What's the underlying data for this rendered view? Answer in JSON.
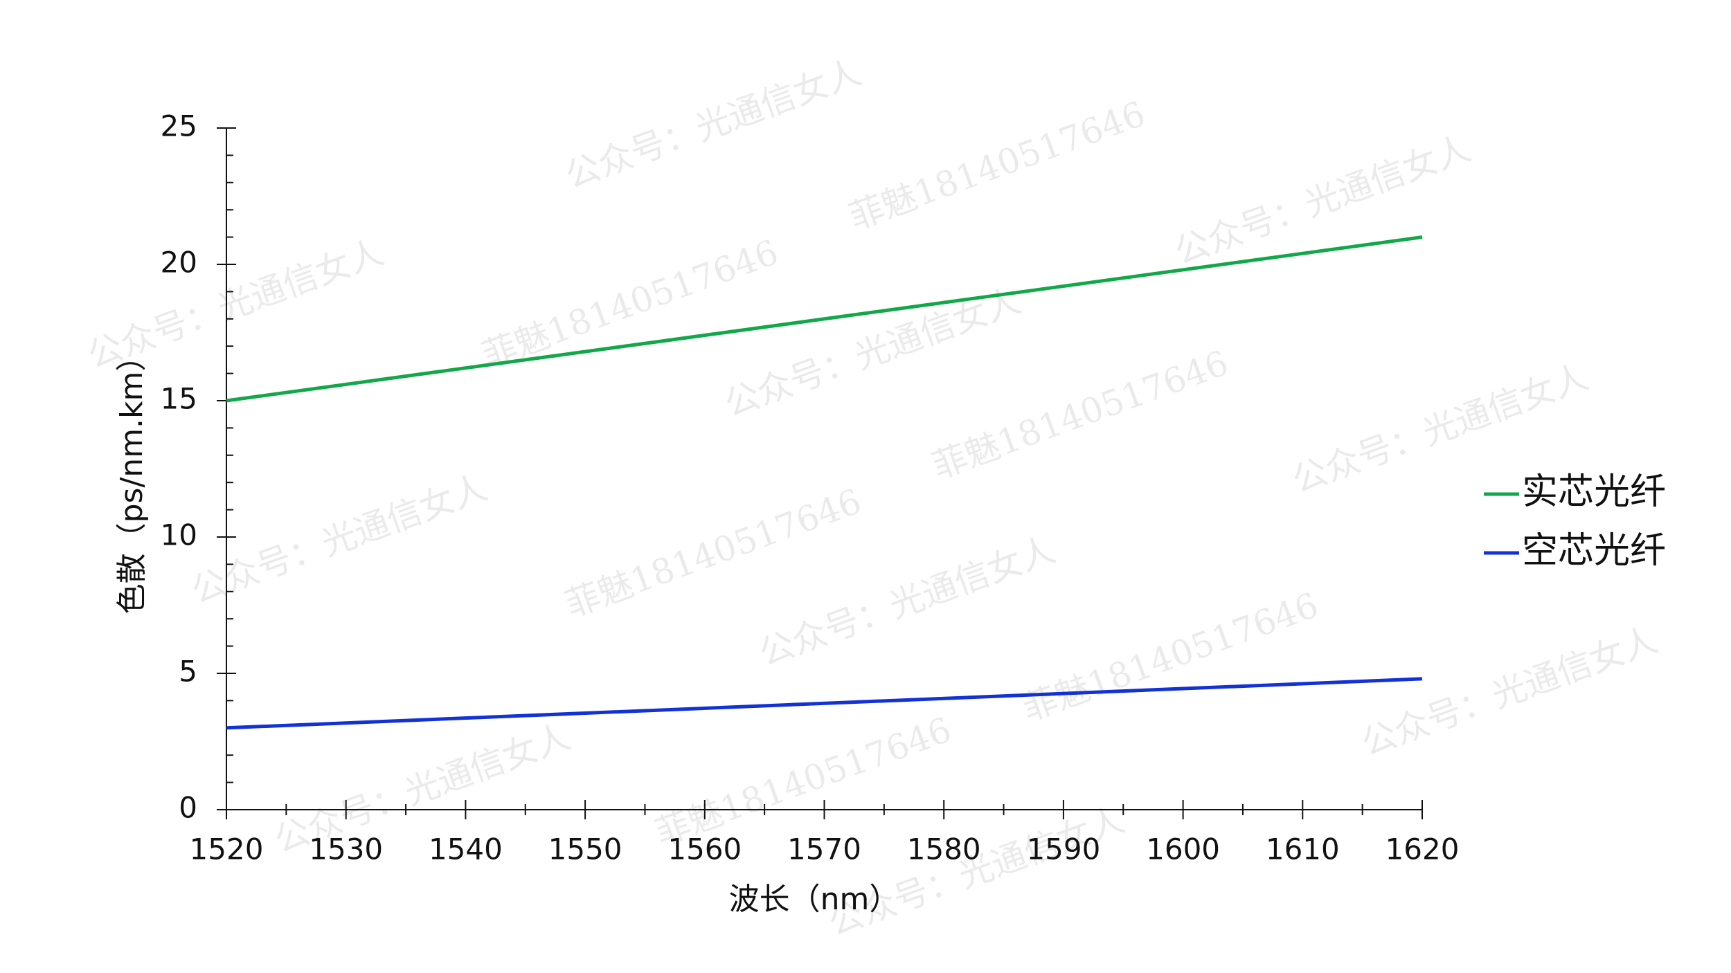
{
  "chart_data": {
    "type": "line",
    "x_label": "波长（nm）",
    "y_label": "色散（ps/nm.km）",
    "x": [
      1520,
      1620
    ],
    "series": [
      {
        "name": "实芯光纤",
        "color": "#12a84a",
        "values": [
          15,
          21
        ]
      },
      {
        "name": "空芯光纤",
        "color": "#1232d6",
        "values": [
          3,
          4.8
        ]
      }
    ],
    "xlim": [
      1520,
      1620
    ],
    "xticks": [
      1520,
      1530,
      1540,
      1550,
      1560,
      1570,
      1580,
      1590,
      1600,
      1610,
      1620
    ],
    "ylim": [
      0,
      25
    ],
    "yticks": [
      0,
      5,
      10,
      15,
      20,
      25
    ],
    "x_minor_per_major": 2,
    "y_minor_per_major": 5,
    "grid": false,
    "legend": "right"
  },
  "watermarks": [
    "公众号：光通信女人",
    "菲魅18140517646"
  ]
}
